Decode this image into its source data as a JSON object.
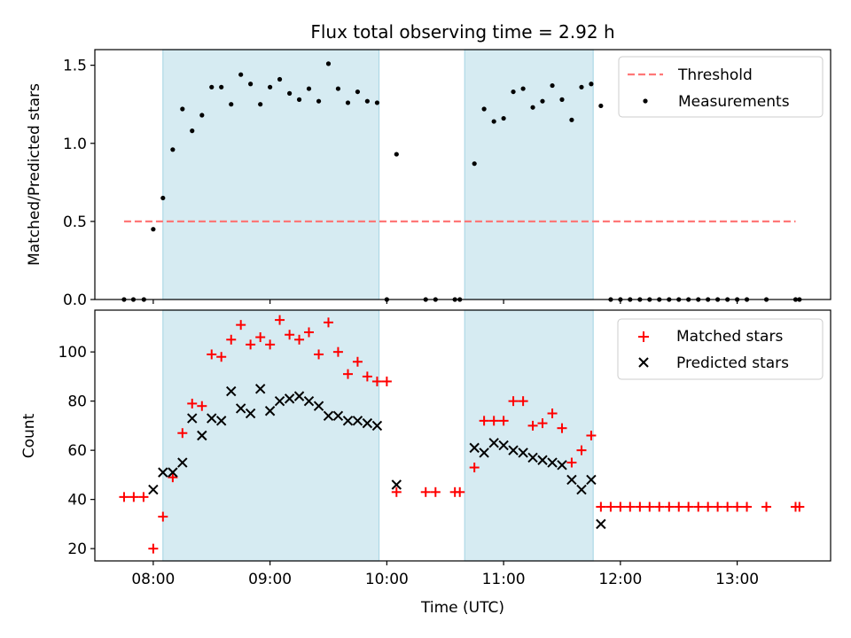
{
  "chart_data": [
    {
      "type": "scatter",
      "title": "Flux total observing time = 2.92 h",
      "ylabel": "Matched/Predicted stars",
      "xlabel": "",
      "xlim": [
        7.5,
        13.8
      ],
      "ylim": [
        0,
        1.6
      ],
      "yticks": [
        0.0,
        0.5,
        1.0,
        1.5
      ],
      "ytick_labels": [
        "0.0",
        "0.5",
        "1.0",
        "1.5"
      ],
      "shaded_intervals": [
        [
          8.083,
          9.933
        ],
        [
          10.667,
          11.767
        ]
      ],
      "threshold": {
        "name": "Threshold",
        "value": 0.5,
        "x_start": 7.75,
        "x_end": 13.5,
        "color": "#ff7777"
      },
      "legend": [
        "Threshold",
        "Measurements"
      ],
      "legend_position": "upper right",
      "series": [
        {
          "name": "Measurements",
          "color": "#000000",
          "x": [
            7.75,
            7.83,
            7.92,
            8.0,
            8.083,
            8.167,
            8.25,
            8.333,
            8.417,
            8.5,
            8.583,
            8.667,
            8.75,
            8.833,
            8.917,
            9.0,
            9.083,
            9.167,
            9.25,
            9.333,
            9.417,
            9.5,
            9.583,
            9.667,
            9.75,
            9.833,
            9.917,
            10.0,
            10.083,
            10.333,
            10.417,
            10.583,
            10.625,
            10.75,
            10.833,
            10.917,
            11.0,
            11.083,
            11.167,
            11.25,
            11.333,
            11.417,
            11.5,
            11.583,
            11.667,
            11.75,
            11.833,
            11.917,
            12.0,
            12.083,
            12.167,
            12.25,
            12.333,
            12.417,
            12.5,
            12.583,
            12.667,
            12.75,
            12.833,
            12.917,
            13.0,
            13.083,
            13.25,
            13.5,
            13.533
          ],
          "y": [
            0.0,
            0.0,
            0.0,
            0.45,
            0.65,
            0.96,
            1.22,
            1.08,
            1.18,
            1.36,
            1.36,
            1.25,
            1.44,
            1.38,
            1.25,
            1.36,
            1.41,
            1.32,
            1.28,
            1.35,
            1.27,
            1.51,
            1.35,
            1.26,
            1.33,
            1.27,
            1.26,
            0.0,
            0.93,
            0.0,
            0.0,
            0.0,
            0.0,
            0.87,
            1.22,
            1.14,
            1.16,
            1.33,
            1.35,
            1.23,
            1.27,
            1.37,
            1.28,
            1.15,
            1.36,
            1.38,
            1.24,
            0.0,
            0.0,
            0.0,
            0.0,
            0.0,
            0.0,
            0.0,
            0.0,
            0.0,
            0.0,
            0.0,
            0.0,
            0.0,
            0.0,
            0.0,
            0.0,
            0.0,
            0.0
          ]
        }
      ]
    },
    {
      "type": "scatter",
      "title": "",
      "ylabel": "Count",
      "xlabel": "Time (UTC)",
      "xlim": [
        7.5,
        13.8
      ],
      "ylim": [
        15,
        117
      ],
      "yticks": [
        20,
        40,
        60,
        80,
        100
      ],
      "ytick_labels": [
        "20",
        "40",
        "60",
        "80",
        "100"
      ],
      "xticks": [
        8,
        9,
        10,
        11,
        12,
        13
      ],
      "xtick_labels": [
        "08:00",
        "09:00",
        "10:00",
        "11:00",
        "12:00",
        "13:00"
      ],
      "shaded_intervals": [
        [
          8.083,
          9.933
        ],
        [
          10.667,
          11.767
        ]
      ],
      "legend": [
        "Matched stars",
        "Predicted stars"
      ],
      "legend_position": "upper right",
      "series": [
        {
          "name": "Matched stars",
          "marker": "+",
          "color": "#ff0000",
          "x": [
            7.75,
            7.833,
            7.917,
            8.0,
            8.083,
            8.167,
            8.25,
            8.333,
            8.417,
            8.5,
            8.583,
            8.667,
            8.75,
            8.833,
            8.917,
            9.0,
            9.083,
            9.167,
            9.25,
            9.333,
            9.417,
            9.5,
            9.583,
            9.667,
            9.75,
            9.833,
            9.917,
            10.0,
            10.083,
            10.333,
            10.417,
            10.583,
            10.625,
            10.75,
            10.833,
            10.917,
            11.0,
            11.083,
            11.167,
            11.25,
            11.333,
            11.417,
            11.5,
            11.583,
            11.667,
            11.75,
            11.833,
            11.917,
            12.0,
            12.083,
            12.167,
            12.25,
            12.333,
            12.417,
            12.5,
            12.583,
            12.667,
            12.75,
            12.833,
            12.917,
            13.0,
            13.083,
            13.25,
            13.5,
            13.533
          ],
          "values": [
            41,
            41,
            41,
            20,
            33,
            49,
            67,
            79,
            78,
            99,
            98,
            105,
            111,
            103,
            106,
            103,
            113,
            107,
            105,
            108,
            99,
            112,
            100,
            91,
            96,
            90,
            88,
            88,
            43,
            43,
            43,
            43,
            43,
            53,
            72,
            72,
            72,
            80,
            80,
            70,
            71,
            75,
            69,
            55,
            60,
            66,
            37,
            37,
            37,
            37,
            37,
            37,
            37,
            37,
            37,
            37,
            37,
            37,
            37,
            37,
            37,
            37,
            37,
            37,
            37
          ]
        },
        {
          "name": "Predicted stars",
          "marker": "x",
          "color": "#000000",
          "x": [
            8.0,
            8.083,
            8.167,
            8.25,
            8.333,
            8.417,
            8.5,
            8.583,
            8.667,
            8.75,
            8.833,
            8.917,
            9.0,
            9.083,
            9.167,
            9.25,
            9.333,
            9.417,
            9.5,
            9.583,
            9.667,
            9.75,
            9.833,
            9.917,
            10.083,
            10.75,
            10.833,
            10.917,
            11.0,
            11.083,
            11.167,
            11.25,
            11.333,
            11.417,
            11.5,
            11.583,
            11.667,
            11.75,
            11.833
          ],
          "values": [
            44,
            51,
            51,
            55,
            73,
            66,
            73,
            72,
            84,
            77,
            75,
            85,
            76,
            80,
            81,
            82,
            80,
            78,
            74,
            74,
            72,
            72,
            71,
            70,
            46,
            61,
            59,
            63,
            62,
            60,
            59,
            57,
            56,
            55,
            54,
            48,
            44,
            48,
            30
          ]
        }
      ]
    }
  ]
}
